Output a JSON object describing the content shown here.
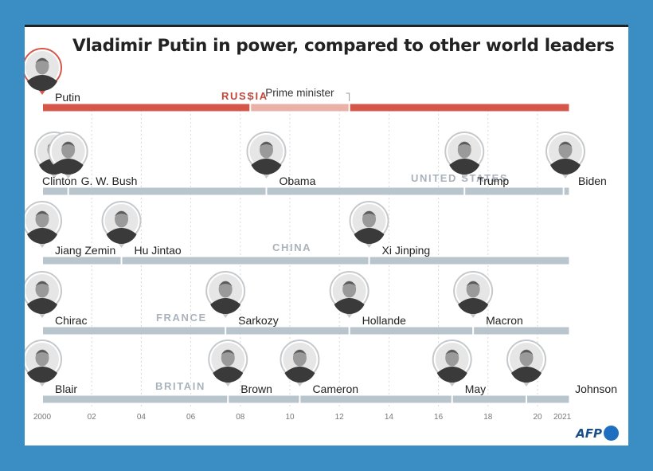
{
  "title": "Vladimir Putin in power, compared to other world leaders",
  "logo": "AFP",
  "colors": {
    "russia_bar": "#d5574a",
    "russia_pm": "#eab2a7",
    "russia_label": "#c0473b",
    "other_bar": "#b9c5cd",
    "country_label": "#a9b3bb",
    "grid": "#d9d9d9",
    "name_text": "#222222"
  },
  "chart_data": {
    "type": "timeline",
    "x_axis": {
      "ticks": [
        {
          "year": 2000,
          "label": "2000"
        },
        {
          "year": 2002,
          "label": "02"
        },
        {
          "year": 2004,
          "label": "04"
        },
        {
          "year": 2006,
          "label": "06"
        },
        {
          "year": 2008,
          "label": "08"
        },
        {
          "year": 2010,
          "label": "10"
        },
        {
          "year": 2012,
          "label": "12"
        },
        {
          "year": 2014,
          "label": "14"
        },
        {
          "year": 2016,
          "label": "16"
        },
        {
          "year": 2018,
          "label": "18"
        },
        {
          "year": 2020,
          "label": "20"
        },
        {
          "year": 2021,
          "label": "2021"
        }
      ],
      "range": [
        2000,
        2021.3
      ]
    },
    "rows": [
      {
        "country": "RUSSIA",
        "leaders": [
          {
            "name": "Putin",
            "start": 2000,
            "end": 2021.3,
            "icon": "putin-portrait"
          }
        ],
        "segments": [
          {
            "start": 2000,
            "end": 2008.4,
            "role": "president"
          },
          {
            "start": 2008.4,
            "end": 2012.4,
            "role": "prime-minister"
          },
          {
            "start": 2012.4,
            "end": 2021.3,
            "role": "president"
          }
        ],
        "annotation": {
          "label": "Prime minister",
          "start": 2008.4,
          "end": 2012.4
        }
      },
      {
        "country": "UNITED STATES",
        "leaders": [
          {
            "name": "Clinton",
            "start": 2000,
            "end": 2001.05,
            "icon": "clinton-portrait"
          },
          {
            "name": "G. W. Bush",
            "start": 2001.05,
            "end": 2009.05,
            "icon": "bush-portrait"
          },
          {
            "name": "Obama",
            "start": 2009.05,
            "end": 2017.05,
            "icon": "obama-portrait"
          },
          {
            "name": "Trump",
            "start": 2017.05,
            "end": 2021.05,
            "icon": "trump-portrait"
          },
          {
            "name": "Biden",
            "start": 2021.05,
            "end": 2021.3,
            "icon": "biden-portrait"
          }
        ]
      },
      {
        "country": "CHINA",
        "leaders": [
          {
            "name": "Jiang Zemin",
            "start": 2000,
            "end": 2003.2,
            "icon": "jiang-zemin-portrait"
          },
          {
            "name": "Hu Jintao",
            "start": 2003.2,
            "end": 2013.2,
            "icon": "hu-jintao-portrait"
          },
          {
            "name": "Xi Jinping",
            "start": 2013.2,
            "end": 2021.3,
            "icon": "xi-jinping-portrait"
          }
        ]
      },
      {
        "country": "FRANCE",
        "leaders": [
          {
            "name": "Chirac",
            "start": 2000,
            "end": 2007.4,
            "icon": "chirac-portrait"
          },
          {
            "name": "Sarkozy",
            "start": 2007.4,
            "end": 2012.4,
            "icon": "sarkozy-portrait"
          },
          {
            "name": "Hollande",
            "start": 2012.4,
            "end": 2017.4,
            "icon": "hollande-portrait"
          },
          {
            "name": "Macron",
            "start": 2017.4,
            "end": 2021.3,
            "icon": "macron-portrait"
          }
        ]
      },
      {
        "country": "BRITAIN",
        "leaders": [
          {
            "name": "Blair",
            "start": 2000,
            "end": 2007.5,
            "icon": "blair-portrait"
          },
          {
            "name": "Brown",
            "start": 2007.5,
            "end": 2010.4,
            "icon": "brown-portrait"
          },
          {
            "name": "Cameron",
            "start": 2010.4,
            "end": 2016.55,
            "icon": "cameron-portrait"
          },
          {
            "name": "May",
            "start": 2016.55,
            "end": 2019.55,
            "icon": "may-portrait"
          },
          {
            "name": "Johnson",
            "start": 2019.55,
            "end": 2021.3,
            "icon": "johnson-portrait"
          }
        ]
      }
    ]
  }
}
